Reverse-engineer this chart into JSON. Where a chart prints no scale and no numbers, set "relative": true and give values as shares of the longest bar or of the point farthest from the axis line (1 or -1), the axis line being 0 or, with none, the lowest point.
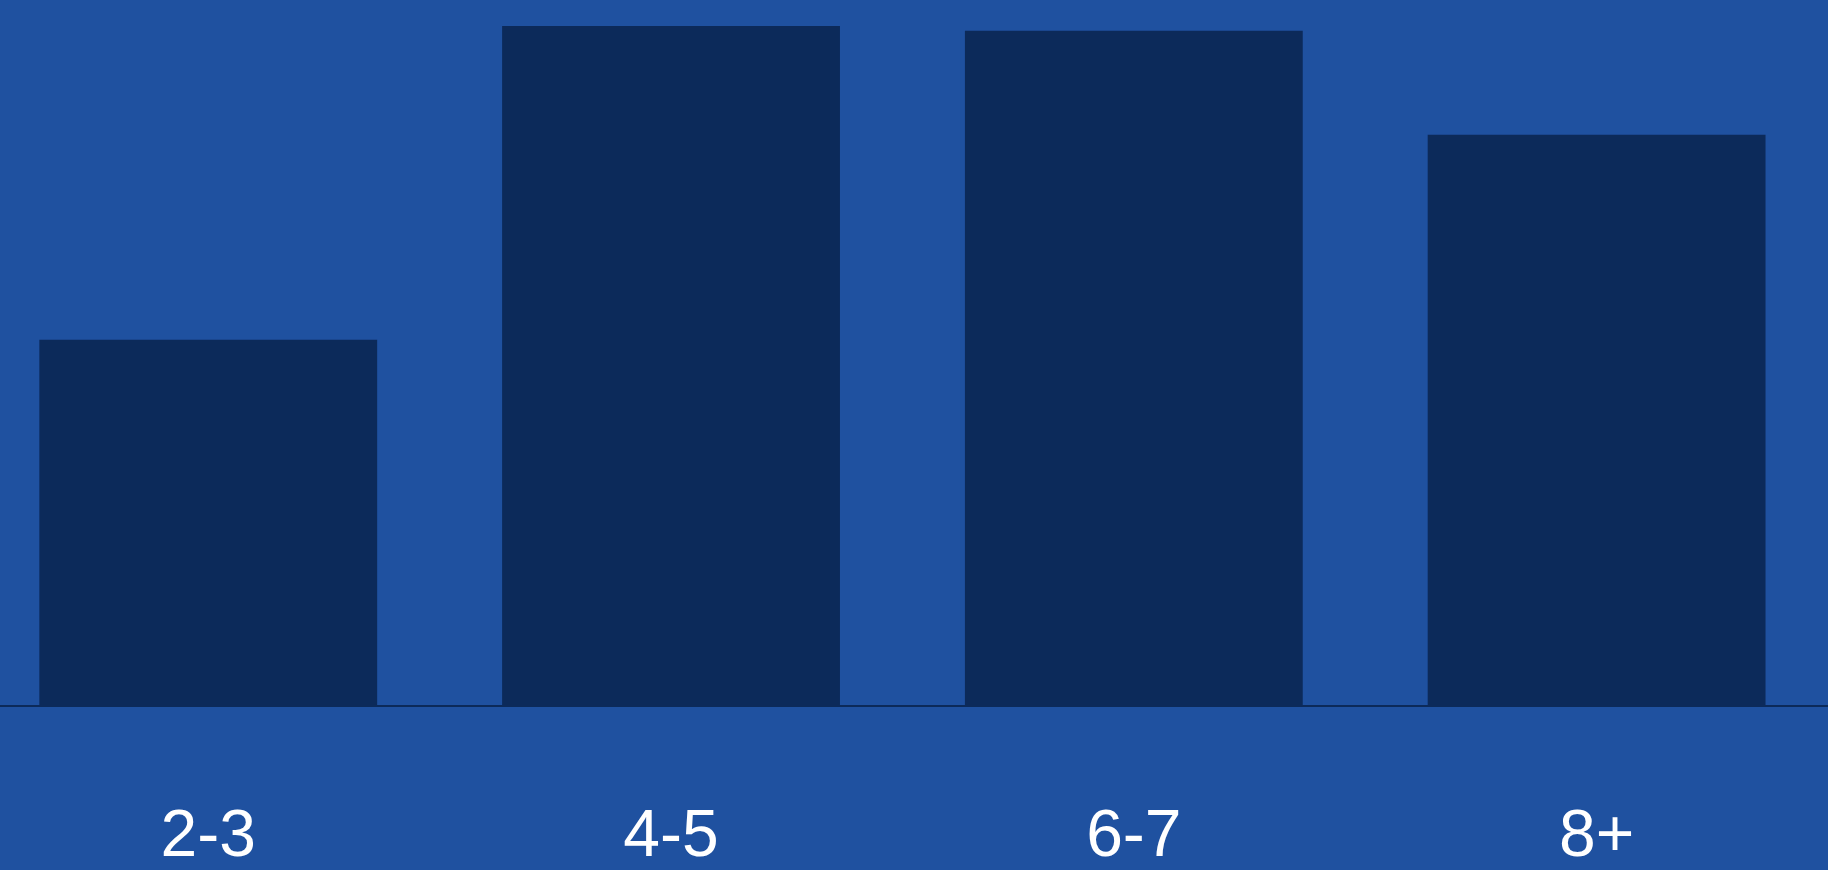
{
  "chart_data": {
    "type": "bar",
    "relative": true,
    "categories": [
      "2-3",
      "4-5",
      "6-7",
      "8+"
    ],
    "values": [
      0.538,
      1,
      0.993,
      0.84
    ],
    "color": "#0c2a5a",
    "grid": false
  }
}
